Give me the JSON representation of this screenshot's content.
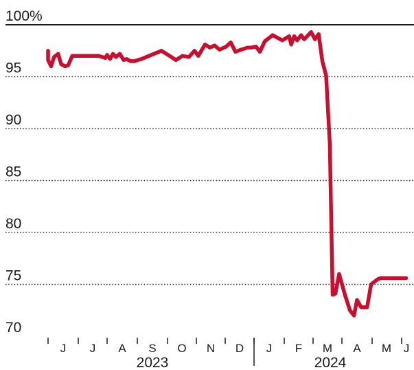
{
  "chart_data": {
    "type": "line",
    "title": "",
    "xlabel": "",
    "ylabel": "",
    "ylim": [
      70,
      100
    ],
    "yticks": [
      70,
      75,
      80,
      85,
      90,
      95,
      100
    ],
    "ytick_labels": [
      "70",
      "75",
      "80",
      "85",
      "90",
      "95",
      "100%"
    ],
    "grid": "dotted horizontal, solid at 100",
    "x_month_labels": [
      "J",
      "J",
      "A",
      "S",
      "O",
      "N",
      "D",
      "J",
      "F",
      "M",
      "A",
      "M",
      "J"
    ],
    "year_labels": [
      "2023",
      "2024"
    ],
    "colors": {
      "line": "#c8102e",
      "text": "#1a1a1a",
      "grid": "#333333"
    },
    "series": [
      {
        "x": [
          "2023-05-25",
          "2023-05-27",
          "2023-05-29",
          "2023-06-01",
          "2023-06-04",
          "2023-06-07",
          "2023-06-11",
          "2023-06-14",
          "2023-06-18",
          "2023-06-21",
          "2023-06-25",
          "2023-06-29",
          "2023-07-02",
          "2023-07-09",
          "2023-07-16",
          "2023-07-23",
          "2023-07-30",
          "2023-08-01",
          "2023-08-04",
          "2023-08-07",
          "2023-08-10",
          "2023-08-14",
          "2023-08-18",
          "2023-08-21",
          "2023-08-25",
          "2023-08-29",
          "2023-09-05",
          "2023-09-15",
          "2023-09-25",
          "2023-10-05",
          "2023-10-10",
          "2023-10-17",
          "2023-10-24",
          "2023-10-30",
          "2023-11-03",
          "2023-11-10",
          "2023-11-15",
          "2023-11-20",
          "2023-11-25",
          "2023-12-02",
          "2023-12-07",
          "2023-12-12",
          "2023-12-18",
          "2023-12-25",
          "2023-12-29",
          "2024-01-03",
          "2024-01-07",
          "2024-01-12",
          "2024-01-20",
          "2024-01-30",
          "2024-02-06",
          "2024-02-08",
          "2024-02-11",
          "2024-02-14",
          "2024-02-18",
          "2024-02-21",
          "2024-02-25",
          "2024-02-28",
          "2024-03-03",
          "2024-03-07",
          "2024-03-11",
          "2024-03-15",
          "2024-03-19",
          "2024-03-22",
          "2024-03-25",
          "2024-03-29",
          "2024-04-04",
          "2024-04-09",
          "2024-04-13",
          "2024-04-16",
          "2024-04-20",
          "2024-04-23",
          "2024-04-26",
          "2024-04-30",
          "2024-05-04",
          "2024-05-07",
          "2024-05-10",
          "2024-05-14",
          "2024-05-17",
          "2024-05-20",
          "2024-05-23",
          "2024-05-26",
          "2024-05-30",
          "2024-06-03",
          "2024-06-07"
        ],
        "values": [
          97.5,
          96.6,
          97.0,
          96.6,
          96.0,
          96.9,
          97.2,
          96.2,
          96.0,
          96.1,
          97.0,
          97.0,
          97.0,
          97.0,
          97.0,
          97.0,
          96.8,
          97.1,
          96.7,
          97.2,
          96.9,
          97.2,
          96.6,
          96.7,
          96.5,
          96.5,
          96.7,
          97.1,
          97.5,
          96.9,
          96.6,
          97.0,
          96.9,
          97.5,
          97.0,
          98.1,
          97.8,
          98.0,
          97.6,
          97.9,
          98.3,
          97.4,
          97.6,
          97.8,
          97.8,
          97.9,
          97.4,
          98.4,
          99.0,
          98.5,
          98.9,
          98.1,
          98.9,
          98.5,
          99.0,
          98.6,
          99.0,
          99.3,
          98.6,
          99.1,
          96.5,
          95.1,
          88.5,
          74.0,
          74.1,
          76.0,
          74.0,
          72.5,
          72.0,
          73.5,
          72.8,
          72.8,
          72.8,
          75.0,
          75.3,
          75.5,
          75.6,
          75.6,
          75.6,
          75.6,
          75.6,
          75.6,
          75.6,
          75.6,
          75.6
        ]
      }
    ]
  }
}
